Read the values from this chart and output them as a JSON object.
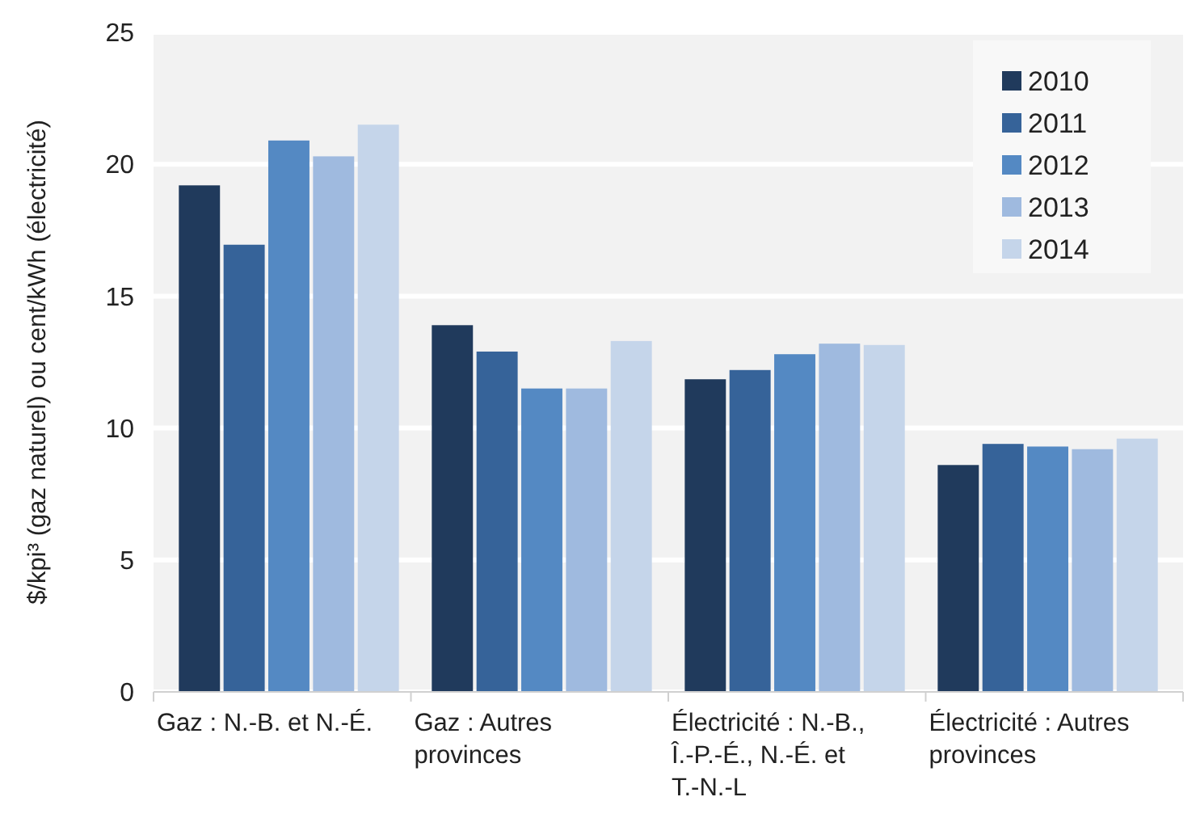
{
  "chart_data": {
    "type": "bar",
    "ylabel": "$/kpi³ (gaz naturel) ou cent/kWh (électricité)",
    "categories": [
      "Gaz : N.-B. et N.-É.",
      "Gaz : Autres provinces",
      "Électricité : N.-B., Î.-P.-É., N.-É. et T.-N.-L",
      "Électricité : Autres provinces"
    ],
    "series": [
      {
        "name": "2010",
        "color": "#203a5c",
        "values": [
          19.2,
          13.9,
          11.85,
          8.6
        ]
      },
      {
        "name": "2011",
        "color": "#366399",
        "values": [
          16.95,
          12.9,
          12.2,
          9.4
        ]
      },
      {
        "name": "2012",
        "color": "#5489c3",
        "values": [
          20.9,
          11.5,
          12.8,
          9.3
        ]
      },
      {
        "name": "2013",
        "color": "#9fbadf",
        "values": [
          20.3,
          11.5,
          13.2,
          9.2
        ]
      },
      {
        "name": "2014",
        "color": "#c5d5ea",
        "values": [
          21.5,
          13.3,
          13.15,
          9.6
        ]
      }
    ],
    "ylim": [
      0,
      25
    ],
    "yticks": [
      0,
      5,
      10,
      15,
      20,
      25
    ],
    "grid": "y",
    "legend": "top right"
  }
}
